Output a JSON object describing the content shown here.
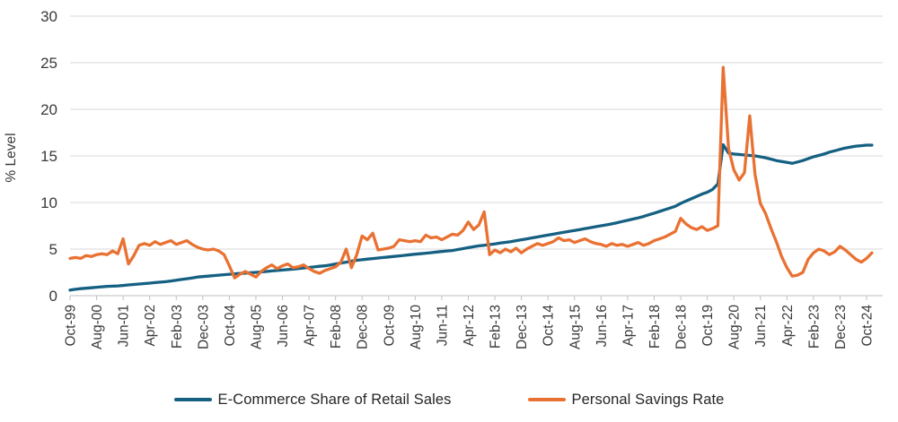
{
  "chart_data": {
    "type": "line",
    "title": "",
    "xlabel": "",
    "ylabel": "% Level",
    "ylim": [
      0,
      30
    ],
    "yticks": [
      0,
      5,
      10,
      15,
      20,
      25,
      30
    ],
    "grid": "horizontal",
    "legend_position": "bottom",
    "x_unit": "monthly, Oct-1999 to Dec-2024, sampled every 2 months",
    "tick_every_points": 5,
    "x_tick_labels": [
      "Oct-99",
      "Aug-00",
      "Jun-01",
      "Apr-02",
      "Feb-03",
      "Dec-03",
      "Oct-04",
      "Aug-05",
      "Jun-06",
      "Apr-07",
      "Feb-08",
      "Dec-08",
      "Oct-09",
      "Aug-10",
      "Jun-11",
      "Apr-12",
      "Feb-13",
      "Dec-13",
      "Oct-14",
      "Aug-15",
      "Jun-16",
      "Apr-17",
      "Feb-18",
      "Dec-18",
      "Oct-19",
      "Aug-20",
      "Jun-21",
      "Apr-22",
      "Feb-23",
      "Dec-23",
      "Oct-24"
    ],
    "colors": {
      "gridline": "#D9D9D9",
      "axis": "#BFBFBF",
      "tick_label": "#3A3A3A",
      "axis_title": "#3A3A3A"
    },
    "series": [
      {
        "name": "E-Commerce Share of Retail Sales",
        "id": "ecommerce-share-line",
        "color": "#156082",
        "values": [
          0.6,
          0.68,
          0.75,
          0.8,
          0.85,
          0.9,
          0.95,
          1.0,
          1.02,
          1.05,
          1.1,
          1.15,
          1.2,
          1.25,
          1.3,
          1.35,
          1.4,
          1.45,
          1.5,
          1.58,
          1.66,
          1.74,
          1.82,
          1.9,
          2.0,
          2.05,
          2.1,
          2.15,
          2.2,
          2.25,
          2.3,
          2.34,
          2.38,
          2.42,
          2.46,
          2.5,
          2.55,
          2.6,
          2.65,
          2.7,
          2.75,
          2.8,
          2.85,
          2.91,
          2.97,
          3.03,
          3.09,
          3.15,
          3.2,
          3.3,
          3.4,
          3.5,
          3.6,
          3.7,
          3.8,
          3.86,
          3.92,
          3.98,
          4.04,
          4.1,
          4.15,
          4.21,
          4.27,
          4.33,
          4.39,
          4.45,
          4.5,
          4.56,
          4.62,
          4.68,
          4.74,
          4.8,
          4.85,
          4.95,
          5.05,
          5.15,
          5.25,
          5.35,
          5.4,
          5.48,
          5.56,
          5.64,
          5.72,
          5.8,
          5.9,
          6.0,
          6.1,
          6.2,
          6.3,
          6.4,
          6.5,
          6.6,
          6.7,
          6.8,
          6.9,
          7.0,
          7.1,
          7.2,
          7.3,
          7.4,
          7.5,
          7.6,
          7.7,
          7.83,
          7.96,
          8.09,
          8.22,
          8.35,
          8.5,
          8.68,
          8.86,
          9.04,
          9.22,
          9.4,
          9.6,
          9.9,
          10.15,
          10.4,
          10.65,
          10.9,
          11.1,
          11.4,
          12.0,
          16.2,
          15.3,
          15.2,
          15.15,
          15.1,
          15.05,
          15.0,
          14.9,
          14.8,
          14.65,
          14.5,
          14.4,
          14.3,
          14.2,
          14.35,
          14.5,
          14.7,
          14.9,
          15.05,
          15.2,
          15.4,
          15.55,
          15.7,
          15.85,
          15.95,
          16.05,
          16.1,
          16.15,
          16.15
        ]
      },
      {
        "name": "Personal Savings Rate",
        "id": "personal-savings-rate-line",
        "color": "#E97132",
        "values": [
          4.0,
          4.1,
          4.0,
          4.3,
          4.2,
          4.4,
          4.5,
          4.4,
          4.8,
          4.5,
          6.1,
          3.4,
          4.3,
          5.4,
          5.6,
          5.4,
          5.8,
          5.5,
          5.7,
          5.9,
          5.5,
          5.7,
          5.9,
          5.5,
          5.2,
          5.0,
          4.9,
          5.0,
          4.8,
          4.4,
          3.2,
          1.9,
          2.3,
          2.6,
          2.3,
          2.0,
          2.6,
          3.0,
          3.3,
          2.9,
          3.2,
          3.4,
          3.0,
          3.1,
          3.3,
          2.9,
          2.6,
          2.4,
          2.7,
          2.9,
          3.1,
          3.6,
          5.0,
          3.0,
          4.4,
          6.4,
          6.0,
          6.7,
          4.9,
          5.0,
          5.1,
          5.3,
          6.0,
          5.9,
          5.8,
          5.9,
          5.8,
          6.5,
          6.2,
          6.3,
          6.0,
          6.3,
          6.6,
          6.5,
          7.0,
          7.9,
          7.1,
          7.6,
          9.0,
          4.4,
          4.9,
          4.6,
          5.0,
          4.7,
          5.1,
          4.6,
          5.0,
          5.3,
          5.6,
          5.4,
          5.6,
          5.8,
          6.2,
          5.9,
          6.0,
          5.7,
          5.9,
          6.1,
          5.8,
          5.6,
          5.5,
          5.3,
          5.6,
          5.4,
          5.5,
          5.3,
          5.5,
          5.7,
          5.4,
          5.6,
          5.9,
          6.1,
          6.3,
          6.6,
          6.9,
          8.3,
          7.7,
          7.3,
          7.1,
          7.4,
          7.0,
          7.2,
          7.5,
          24.5,
          15.8,
          13.5,
          12.4,
          13.2,
          19.3,
          13.0,
          9.9,
          8.8,
          7.2,
          5.8,
          4.2,
          3.0,
          2.1,
          2.2,
          2.5,
          3.9,
          4.6,
          5.0,
          4.8,
          4.4,
          4.7,
          5.3,
          4.9,
          4.4,
          3.9,
          3.6,
          4.0,
          4.6
        ]
      }
    ]
  }
}
